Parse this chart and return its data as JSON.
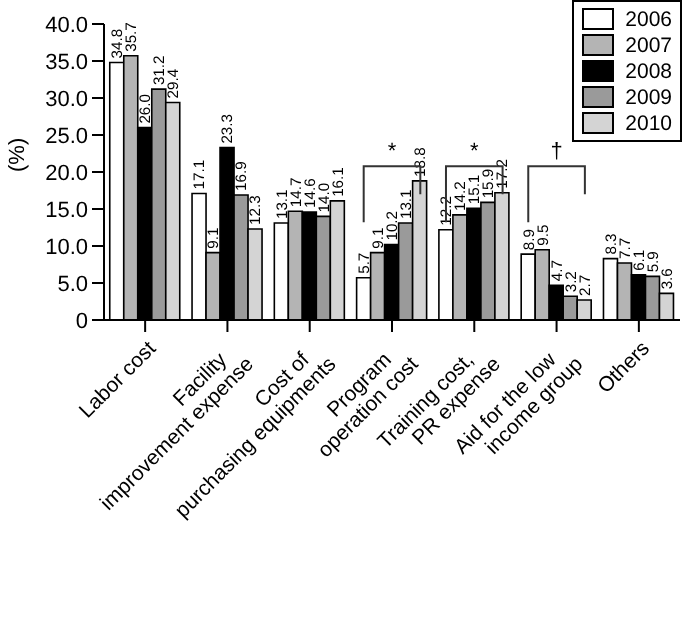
{
  "chart_data": {
    "type": "bar",
    "ylabel": "(%)",
    "categories": [
      "Labor cost",
      "Facility\nimprovement expense",
      "Cost of\npurchasing equipments",
      "Program\noperation cost",
      "Training cost,\nPR expense",
      "Aid for the low\nincome group",
      "Others"
    ],
    "series": [
      {
        "name": "2006",
        "color": "#ffffff",
        "values": [
          34.8,
          17.1,
          13.1,
          5.7,
          12.2,
          8.9,
          8.3
        ],
        "value_labels": [
          "34.8",
          "17.1",
          "13.1",
          "5.7",
          "12.2",
          "8.9",
          "8.3"
        ]
      },
      {
        "name": "2007",
        "color": "#b4b4b4",
        "values": [
          35.7,
          9.1,
          14.7,
          9.1,
          14.2,
          9.5,
          7.7
        ],
        "value_labels": [
          "35.7",
          "9.1",
          "14.7",
          "9.1",
          "14.2",
          "9.5",
          "7.7"
        ]
      },
      {
        "name": "2008",
        "color": "#000000",
        "values": [
          26.0,
          23.3,
          14.6,
          10.2,
          15.1,
          4.7,
          6.1
        ],
        "value_labels": [
          "26.0",
          "23.3",
          "14.6",
          "10.2",
          "15.1",
          "4.7",
          "6.1"
        ]
      },
      {
        "name": "2009",
        "color": "#9a9a9a",
        "values": [
          31.2,
          16.9,
          14.0,
          13.1,
          15.9,
          3.2,
          5.9
        ],
        "value_labels": [
          "31.2",
          "16.9",
          "14.0",
          "13.1",
          "15.9",
          "3.2",
          "5.9"
        ]
      },
      {
        "name": "2010",
        "color": "#d4d4d4",
        "values": [
          29.4,
          12.3,
          16.1,
          18.8,
          17.2,
          2.7,
          3.6
        ],
        "value_labels": [
          "29.4",
          "12.3",
          "16.1",
          "18.8",
          "17.2",
          "2.7",
          "3.6"
        ]
      }
    ],
    "ylim": [
      0,
      40
    ],
    "yticks": [
      0,
      {
        "value": 5,
        "label": "5.0"
      },
      {
        "value": 10,
        "label": "10.0"
      },
      {
        "value": 15,
        "label": "15.0"
      },
      {
        "value": 20,
        "label": "20.0"
      },
      {
        "value": 25,
        "label": "25.0"
      },
      {
        "value": 30,
        "label": "30.0"
      },
      {
        "value": 35,
        "label": "35.0"
      },
      {
        "value": 40,
        "label": "40.0"
      }
    ],
    "annotations": [
      "*",
      "*",
      "†"
    ],
    "legend": "top right",
    "grid": false
  }
}
